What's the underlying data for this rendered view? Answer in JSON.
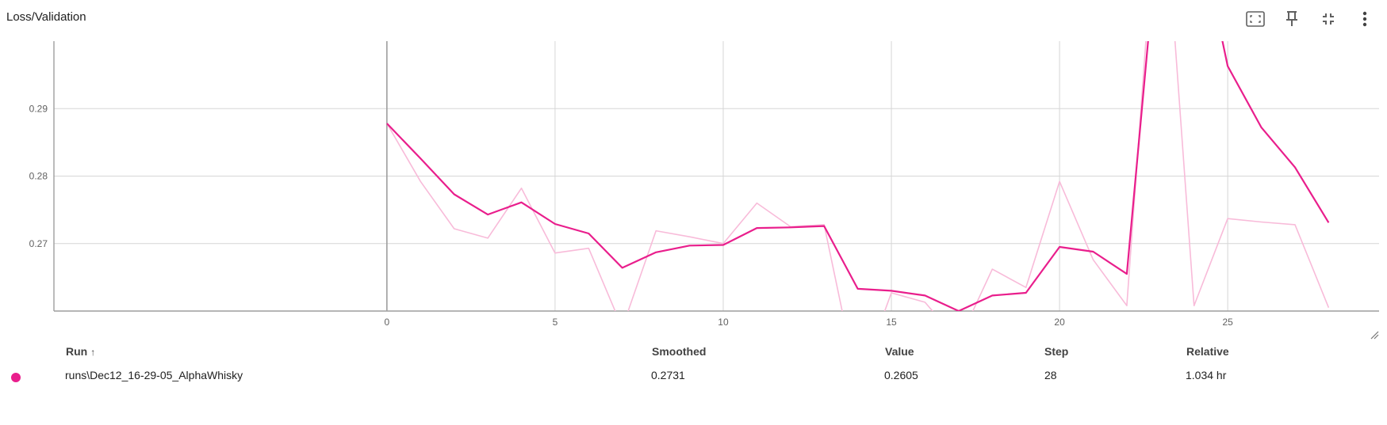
{
  "card": {
    "title": "Loss/Validation"
  },
  "toolbar": {
    "buttons": [
      {
        "name": "fit-domain-button",
        "icon": "fit-screen-icon"
      },
      {
        "name": "pin-card-button",
        "icon": "pin-icon"
      },
      {
        "name": "collapse-card-button",
        "icon": "collapse-icon"
      },
      {
        "name": "more-options-button",
        "icon": "more-vert-icon"
      }
    ]
  },
  "chart_data": {
    "type": "line",
    "title": "Loss/Validation",
    "xlabel": "",
    "ylabel": "",
    "xlim": [
      -9.9,
      29.5
    ],
    "ylim": [
      0.26,
      0.3
    ],
    "xticks": [
      0,
      5,
      10,
      15,
      20,
      25
    ],
    "yticks": [
      0.27,
      0.28,
      0.29
    ],
    "ytick_labels": [
      "0.27",
      "0.28",
      "0.29"
    ],
    "grid": true,
    "series": [
      {
        "name": "runs\\Dec12_16-29-05_AlphaWhisky",
        "role": "raw",
        "color": "#f8bbd9",
        "x": [
          0,
          1,
          2,
          3,
          4,
          5,
          6,
          7,
          8,
          9,
          10,
          11,
          12,
          13,
          14,
          15,
          16,
          17,
          18,
          19,
          20,
          21,
          22,
          23,
          24,
          25,
          26,
          27,
          28
        ],
        "y": [
          0.2878,
          0.2792,
          0.2722,
          0.2708,
          0.2782,
          0.2686,
          0.2693,
          0.2575,
          0.2719,
          0.271,
          0.27,
          0.276,
          0.2725,
          0.2728,
          0.249,
          0.2627,
          0.2613,
          0.2555,
          0.2662,
          0.2635,
          0.2792,
          0.2676,
          0.2608,
          0.33,
          0.2608,
          0.2737,
          0.2732,
          0.2728,
          0.2605
        ]
      },
      {
        "name": "runs\\Dec12_16-29-05_AlphaWhisky",
        "role": "smoothed",
        "color": "#e91e8c",
        "x": [
          0,
          1,
          2,
          3,
          4,
          5,
          6,
          7,
          8,
          9,
          10,
          11,
          12,
          13,
          14,
          15,
          16,
          17,
          18,
          19,
          20,
          21,
          22,
          23,
          24,
          25,
          26,
          27,
          28
        ],
        "y": [
          0.2878,
          0.2826,
          0.2773,
          0.2743,
          0.2761,
          0.2729,
          0.2715,
          0.2664,
          0.2687,
          0.2697,
          0.2698,
          0.2723,
          0.2724,
          0.2726,
          0.2633,
          0.263,
          0.2623,
          0.26,
          0.2623,
          0.2627,
          0.2695,
          0.2688,
          0.2655,
          0.32,
          0.32,
          0.2963,
          0.2872,
          0.2813,
          0.2731
        ]
      }
    ]
  },
  "table": {
    "headers": {
      "run": "Run",
      "sort_indicator": "↑",
      "smoothed": "Smoothed",
      "value": "Value",
      "step": "Step",
      "relative": "Relative"
    },
    "rows": [
      {
        "color": "#e91e8c",
        "run": "runs\\Dec12_16-29-05_AlphaWhisky",
        "smoothed": "0.2731",
        "value": "0.2605",
        "step": "28",
        "relative": "1.034 hr"
      }
    ]
  }
}
